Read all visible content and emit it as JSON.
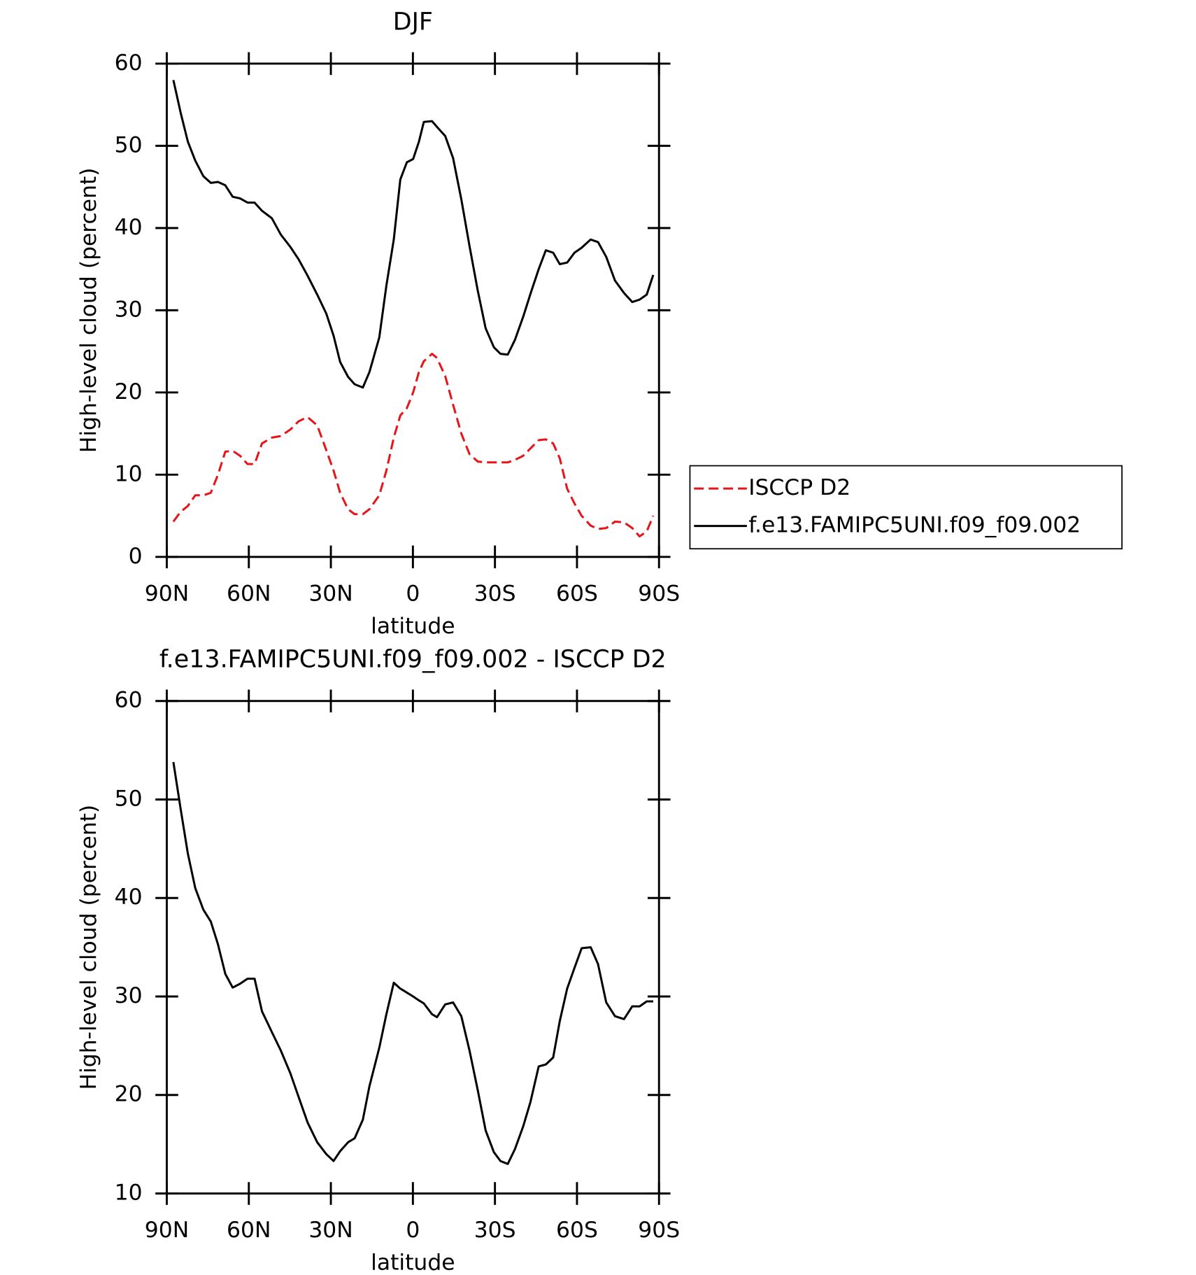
{
  "chart_data": [
    {
      "type": "line",
      "title": "DJF",
      "xlabel": "latitude",
      "ylabel": "High-level cloud (percent)",
      "x": [
        87.6,
        84.9,
        82.3,
        79.6,
        76.6,
        73.9,
        71.3,
        68.6,
        65.9,
        63.2,
        60.5,
        57.9,
        55.2,
        51.6,
        48.3,
        44.8,
        41.8,
        38.5,
        35.0,
        31.7,
        29.0,
        26.6,
        23.7,
        21.3,
        18.3,
        15.9,
        12.3,
        9.7,
        7.0,
        4.6,
        2.2,
        -0.1,
        -2.2,
        -4.0,
        -7.0,
        -8.8,
        -11.8,
        -14.7,
        -17.7,
        -20.7,
        -23.7,
        -26.6,
        -29.6,
        -32.0,
        -34.7,
        -37.3,
        -40.3,
        -43.0,
        -46.0,
        -48.6,
        -51.3,
        -53.7,
        -56.4,
        -59.1,
        -61.7,
        -65.0,
        -67.7,
        -70.7,
        -73.9,
        -77.2,
        -80.2,
        -82.9,
        -85.5,
        -87.9
      ],
      "series": [
        {
          "name": "ISCCP D2",
          "color": "#e8141a",
          "dash": true,
          "values": [
            4.3,
            5.5,
            6.2,
            7.5,
            7.5,
            7.8,
            10,
            12.8,
            12.9,
            12.3,
            11.3,
            11.3,
            13.8,
            14.5,
            14.7,
            15.5,
            16.5,
            17,
            16,
            13,
            10.5,
            7.8,
            5.8,
            5.2,
            5.2,
            5.8,
            7.5,
            10.5,
            14.5,
            17.2,
            18.1,
            20,
            22.5,
            23.8,
            24.7,
            24.2,
            22,
            18.5,
            15,
            12.5,
            11.6,
            11.5,
            11.5,
            11.5,
            11.5,
            11.8,
            12.3,
            13.2,
            14.2,
            14.3,
            13.8,
            12,
            8.3,
            6.5,
            5,
            3.8,
            3.4,
            3.5,
            4.3,
            4.2,
            3.5,
            2.5,
            3.1,
            5
          ]
        },
        {
          "name": "f.e13.FAMIPC5UNI.f09_f09.002",
          "color": "#000000",
          "dash": false,
          "values": [
            58,
            54,
            50.5,
            48.2,
            46.3,
            45.5,
            45.6,
            45.2,
            43.8,
            43.6,
            43.1,
            43.1,
            42.1,
            41.2,
            39.2,
            37.7,
            36.2,
            34.2,
            31.9,
            29.6,
            26.9,
            23.7,
            21.9,
            21,
            20.6,
            22.5,
            26.7,
            33,
            38.6,
            45.9,
            48,
            48.4,
            50.5,
            52.9,
            53,
            52.3,
            51.2,
            48.5,
            43.5,
            37.8,
            32.4,
            27.8,
            25.5,
            24.7,
            24.6,
            26.4,
            29.2,
            32,
            35,
            37.3,
            37,
            35.6,
            35.8,
            37,
            37.6,
            38.6,
            38.3,
            36.5,
            33.6,
            32.1,
            31,
            31.3,
            31.9,
            34.3
          ]
        }
      ],
      "xlim": [
        90,
        -90
      ],
      "xticks": [
        {
          "value": 90,
          "label": "90N"
        },
        {
          "value": 60,
          "label": "60N"
        },
        {
          "value": 30,
          "label": "30N"
        },
        0,
        {
          "value": -30,
          "label": "30S"
        },
        {
          "value": -60,
          "label": "60S"
        },
        {
          "value": -90,
          "label": "90S"
        }
      ],
      "ylim": [
        0,
        60
      ],
      "yticks": [
        0,
        10,
        20,
        30,
        40,
        50,
        60
      ],
      "legend": "right"
    },
    {
      "type": "line",
      "title": "f.e13.FAMIPC5UNI.f09_f09.002 - ISCCP D2",
      "xlabel": "latitude",
      "ylabel": "High-level cloud (percent)",
      "x": [
        87.6,
        84.9,
        82.3,
        79.6,
        76.6,
        73.9,
        71.3,
        68.6,
        65.9,
        63.2,
        60.5,
        57.9,
        55.2,
        51.6,
        48.3,
        44.8,
        41.8,
        38.5,
        35.0,
        31.7,
        29.0,
        26.6,
        23.7,
        21.3,
        18.3,
        15.9,
        12.3,
        9.7,
        7.0,
        4.6,
        2.2,
        -0.1,
        -2.2,
        -4.0,
        -7.0,
        -8.8,
        -11.8,
        -14.7,
        -17.7,
        -20.7,
        -23.7,
        -26.6,
        -29.6,
        -32.0,
        -34.7,
        -37.3,
        -40.3,
        -43.0,
        -46.0,
        -48.6,
        -51.3,
        -53.7,
        -56.4,
        -59.1,
        -61.7,
        -65.0,
        -67.7,
        -70.7,
        -73.9,
        -77.2,
        -80.2,
        -82.9,
        -85.5,
        -87.9
      ],
      "series": [
        {
          "color": "#000000",
          "dash": false,
          "values": [
            53.8,
            49,
            44.5,
            41,
            38.8,
            37.6,
            35.3,
            32.3,
            30.9,
            31.3,
            31.8,
            31.8,
            28.5,
            26.4,
            24.5,
            22.2,
            19.8,
            17.2,
            15.2,
            14,
            13.3,
            14.3,
            15.2,
            15.6,
            17.5,
            20.9,
            24.8,
            28.2,
            31.4,
            30.8,
            30.4,
            30,
            29.6,
            29.3,
            28.2,
            27.9,
            29.2,
            29.4,
            28,
            24.5,
            20.5,
            16.4,
            14.2,
            13.3,
            13,
            14.5,
            16.8,
            19.3,
            22.9,
            23.1,
            23.8,
            27.5,
            30.8,
            32.9,
            34.9,
            35,
            33.3,
            29.4,
            28,
            27.7,
            29,
            29,
            29.5,
            29.5
          ]
        }
      ],
      "xlim": [
        90,
        -90
      ],
      "xticks": [
        {
          "value": 90,
          "label": "90N"
        },
        {
          "value": 60,
          "label": "60N"
        },
        {
          "value": 30,
          "label": "30N"
        },
        0,
        {
          "value": -30,
          "label": "30S"
        },
        {
          "value": -60,
          "label": "60S"
        },
        {
          "value": -90,
          "label": "90S"
        }
      ],
      "ylim": [
        10,
        60
      ],
      "yticks": [
        10,
        20,
        30,
        40,
        50,
        60
      ]
    }
  ]
}
